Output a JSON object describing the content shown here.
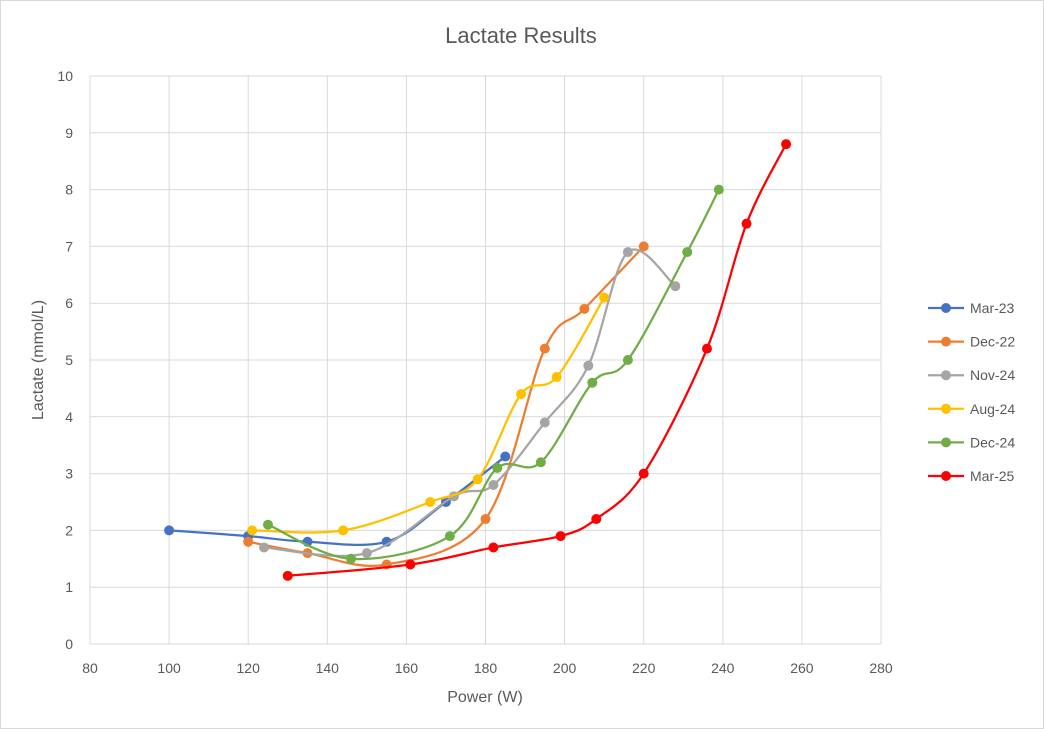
{
  "chart_data": {
    "type": "scatter",
    "title": "Lactate Results",
    "xlabel": "Power (W)",
    "ylabel": "Lactate (mmol/L)",
    "xlim": [
      80,
      280
    ],
    "ylim": [
      0,
      10
    ],
    "x_ticks": [
      80,
      100,
      120,
      140,
      160,
      180,
      200,
      220,
      240,
      260,
      280
    ],
    "y_ticks": [
      0,
      1,
      2,
      3,
      4,
      5,
      6,
      7,
      8,
      9,
      10
    ],
    "grid": true,
    "legend_position": "right",
    "line_style": "smoothed",
    "series": [
      {
        "name": "Mar-23",
        "color": "#4472C4",
        "x": [
          100,
          120,
          135,
          155,
          170,
          185
        ],
        "y": [
          2.0,
          1.9,
          1.8,
          1.8,
          2.5,
          3.3
        ]
      },
      {
        "name": "Dec-22",
        "color": "#ED7D31",
        "x": [
          120,
          135,
          155,
          180,
          195,
          205,
          220
        ],
        "y": [
          1.8,
          1.6,
          1.4,
          2.2,
          5.2,
          5.9,
          7.0
        ]
      },
      {
        "name": "Nov-24",
        "color": "#A5A5A5",
        "x": [
          124,
          150,
          172,
          182,
          195,
          206,
          216,
          228
        ],
        "y": [
          1.7,
          1.6,
          2.6,
          2.8,
          3.9,
          4.9,
          6.9,
          6.3
        ]
      },
      {
        "name": "Aug-24",
        "color": "#FFC000",
        "x": [
          121,
          144,
          166,
          178,
          189,
          198,
          210
        ],
        "y": [
          2.0,
          2.0,
          2.5,
          2.9,
          4.4,
          4.7,
          6.1
        ]
      },
      {
        "name": "Dec-24",
        "color": "#70AD47",
        "x": [
          125,
          146,
          171,
          183,
          194,
          207,
          216,
          231,
          239
        ],
        "y": [
          2.1,
          1.5,
          1.9,
          3.1,
          3.2,
          4.6,
          5.0,
          6.9,
          8.0
        ]
      },
      {
        "name": "Mar-25",
        "color": "#FF0000",
        "x": [
          130,
          161,
          182,
          199,
          208,
          220,
          236,
          246,
          256
        ],
        "y": [
          1.2,
          1.4,
          1.7,
          1.9,
          2.2,
          3.0,
          5.2,
          7.4,
          8.8
        ]
      }
    ]
  }
}
